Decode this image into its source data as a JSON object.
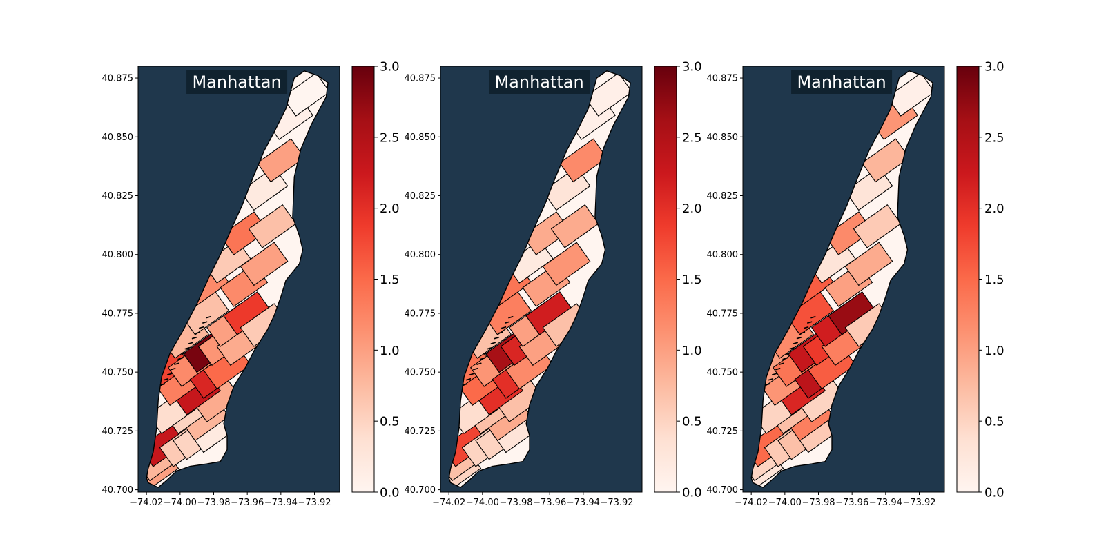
{
  "figure": {
    "background": "#ffffff"
  },
  "chart_data": [
    {
      "type": "choropleth",
      "title": "Manhattan",
      "background_color": "#1f374c",
      "title_box_color": "#0e1e2a",
      "xlim": [
        -74.025,
        -73.905
      ],
      "ylim": [
        40.699,
        40.88
      ],
      "x_ticks": [
        -74.02,
        -74.0,
        -73.98,
        -73.96,
        -73.94,
        -73.92
      ],
      "x_tick_labels": [
        "−74.02",
        "−74.00",
        "−73.98",
        "−73.96",
        "−73.94",
        "−73.92"
      ],
      "y_ticks": [
        40.7,
        40.725,
        40.75,
        40.775,
        40.8,
        40.825,
        40.85,
        40.875
      ],
      "y_tick_labels": [
        "40.700",
        "40.725",
        "40.750",
        "40.775",
        "40.800",
        "40.825",
        "40.850",
        "40.875"
      ],
      "colorbar": {
        "colormap": "Reds",
        "range": [
          0.0,
          3.0
        ],
        "ticks": [
          "0.0",
          "0.5",
          "1.0",
          "1.5",
          "2.0",
          "2.5",
          "3.0"
        ]
      },
      "zones": [
        {
          "lon": -74.015,
          "lat": 40.708,
          "value": 1.0
        },
        {
          "lon": -74.012,
          "lat": 40.713,
          "value": 0.8
        },
        {
          "lon": -74.01,
          "lat": 40.719,
          "value": 2.3
        },
        {
          "lon": -73.998,
          "lat": 40.719,
          "value": 0.6
        },
        {
          "lon": -73.99,
          "lat": 40.722,
          "value": 0.5
        },
        {
          "lon": -73.98,
          "lat": 40.725,
          "value": 0.2
        },
        {
          "lon": -73.985,
          "lat": 40.73,
          "value": 0.8
        },
        {
          "lon": -73.995,
          "lat": 40.733,
          "value": 0.5
        },
        {
          "lon": -74.005,
          "lat": 40.733,
          "value": 0.4
        },
        {
          "lon": -73.978,
          "lat": 40.738,
          "value": 0.9
        },
        {
          "lon": -73.99,
          "lat": 40.741,
          "value": 2.3
        },
        {
          "lon": -74.0,
          "lat": 40.745,
          "value": 1.3
        },
        {
          "lon": -74.008,
          "lat": 40.752,
          "value": 1.8
        },
        {
          "lon": -73.993,
          "lat": 40.753,
          "value": 1.2
        },
        {
          "lon": -73.98,
          "lat": 40.748,
          "value": 2.1
        },
        {
          "lon": -73.972,
          "lat": 40.752,
          "value": 1.5
        },
        {
          "lon": -73.984,
          "lat": 40.759,
          "value": 2.9
        },
        {
          "lon": -73.975,
          "lat": 40.762,
          "value": 1.1
        },
        {
          "lon": -73.964,
          "lat": 40.762,
          "value": 0.9
        },
        {
          "lon": -73.997,
          "lat": 40.765,
          "value": 0.8
        },
        {
          "lon": -73.985,
          "lat": 40.775,
          "value": 0.7
        },
        {
          "lon": -73.97,
          "lat": 40.77,
          "value": 1.0
        },
        {
          "lon": -73.96,
          "lat": 40.775,
          "value": 1.9
        },
        {
          "lon": -73.95,
          "lat": 40.77,
          "value": 0.6
        },
        {
          "lon": -73.985,
          "lat": 40.787,
          "value": 1.2
        },
        {
          "lon": -73.962,
          "lat": 40.787,
          "value": 1.2
        },
        {
          "lon": -73.972,
          "lat": 40.797,
          "value": 0.6
        },
        {
          "lon": -73.95,
          "lat": 40.796,
          "value": 1.0
        },
        {
          "lon": -73.962,
          "lat": 40.809,
          "value": 1.4
        },
        {
          "lon": -73.945,
          "lat": 40.812,
          "value": 0.7
        },
        {
          "lon": -73.95,
          "lat": 40.828,
          "value": 0.2
        },
        {
          "lon": -73.94,
          "lat": 40.84,
          "value": 1.0
        },
        {
          "lon": -73.935,
          "lat": 40.858,
          "value": 0.1
        },
        {
          "lon": -73.925,
          "lat": 40.868,
          "value": 0.0
        }
      ]
    },
    {
      "type": "choropleth",
      "title": "Manhattan",
      "background_color": "#1f374c",
      "title_box_color": "#0e1e2a",
      "xlim": [
        -74.025,
        -73.905
      ],
      "ylim": [
        40.699,
        40.88
      ],
      "x_ticks": [
        -74.02,
        -74.0,
        -73.98,
        -73.96,
        -73.94,
        -73.92
      ],
      "x_tick_labels": [
        "−74.02",
        "−74.00",
        "−73.98",
        "−73.96",
        "−73.94",
        "−73.92"
      ],
      "y_ticks": [
        40.7,
        40.725,
        40.75,
        40.775,
        40.8,
        40.825,
        40.85,
        40.875
      ],
      "y_tick_labels": [
        "40.700",
        "40.725",
        "40.750",
        "40.775",
        "40.800",
        "40.825",
        "40.850",
        "40.875"
      ],
      "colorbar": {
        "colormap": "Reds",
        "range": [
          0.0,
          3.0
        ],
        "ticks": [
          "0.0",
          "0.5",
          "1.0",
          "1.5",
          "2.0",
          "2.5",
          "3.0"
        ]
      },
      "zones": [
        {
          "lon": -74.015,
          "lat": 40.708,
          "value": 0.5
        },
        {
          "lon": -74.012,
          "lat": 40.713,
          "value": 0.7
        },
        {
          "lon": -74.01,
          "lat": 40.719,
          "value": 1.8
        },
        {
          "lon": -73.998,
          "lat": 40.719,
          "value": 0.5
        },
        {
          "lon": -73.99,
          "lat": 40.722,
          "value": 0.5
        },
        {
          "lon": -73.98,
          "lat": 40.725,
          "value": 0.3
        },
        {
          "lon": -73.985,
          "lat": 40.73,
          "value": 0.9
        },
        {
          "lon": -73.995,
          "lat": 40.733,
          "value": 0.7
        },
        {
          "lon": -74.005,
          "lat": 40.733,
          "value": 0.4
        },
        {
          "lon": -73.978,
          "lat": 40.738,
          "value": 0.7
        },
        {
          "lon": -73.99,
          "lat": 40.741,
          "value": 2.0
        },
        {
          "lon": -74.0,
          "lat": 40.745,
          "value": 1.5
        },
        {
          "lon": -74.008,
          "lat": 40.752,
          "value": 1.4
        },
        {
          "lon": -73.993,
          "lat": 40.753,
          "value": 1.1
        },
        {
          "lon": -73.98,
          "lat": 40.748,
          "value": 2.0
        },
        {
          "lon": -73.972,
          "lat": 40.752,
          "value": 1.2
        },
        {
          "lon": -73.984,
          "lat": 40.759,
          "value": 2.6
        },
        {
          "lon": -73.975,
          "lat": 40.762,
          "value": 2.1
        },
        {
          "lon": -73.964,
          "lat": 40.762,
          "value": 1.0
        },
        {
          "lon": -73.997,
          "lat": 40.765,
          "value": 0.7
        },
        {
          "lon": -73.985,
          "lat": 40.775,
          "value": 1.3
        },
        {
          "lon": -73.97,
          "lat": 40.77,
          "value": 1.0
        },
        {
          "lon": -73.96,
          "lat": 40.775,
          "value": 2.2
        },
        {
          "lon": -73.95,
          "lat": 40.77,
          "value": 0.7
        },
        {
          "lon": -73.985,
          "lat": 40.787,
          "value": 1.4
        },
        {
          "lon": -73.962,
          "lat": 40.787,
          "value": 1.0
        },
        {
          "lon": -73.972,
          "lat": 40.797,
          "value": 0.2
        },
        {
          "lon": -73.95,
          "lat": 40.796,
          "value": 1.1
        },
        {
          "lon": -73.962,
          "lat": 40.809,
          "value": 0.9
        },
        {
          "lon": -73.945,
          "lat": 40.812,
          "value": 0.9
        },
        {
          "lon": -73.95,
          "lat": 40.828,
          "value": 0.3
        },
        {
          "lon": -73.94,
          "lat": 40.84,
          "value": 1.2
        },
        {
          "lon": -73.935,
          "lat": 40.858,
          "value": 0.1
        },
        {
          "lon": -73.925,
          "lat": 40.868,
          "value": 0.1
        }
      ]
    },
    {
      "type": "choropleth",
      "title": "Manhattan",
      "background_color": "#1f374c",
      "title_box_color": "#0e1e2a",
      "xlim": [
        -74.025,
        -73.905
      ],
      "ylim": [
        40.699,
        40.88
      ],
      "x_ticks": [
        -74.02,
        -74.0,
        -73.98,
        -73.96,
        -73.94,
        -73.92
      ],
      "x_tick_labels": [
        "−74.02",
        "−74.00",
        "−73.98",
        "−73.96",
        "−73.94",
        "−73.92"
      ],
      "y_ticks": [
        40.7,
        40.725,
        40.75,
        40.775,
        40.8,
        40.825,
        40.85,
        40.875
      ],
      "y_tick_labels": [
        "40.700",
        "40.725",
        "40.750",
        "40.775",
        "40.800",
        "40.825",
        "40.850",
        "40.875"
      ],
      "colorbar": {
        "colormap": "Reds",
        "range": [
          0.0,
          3.0
        ],
        "ticks": [
          "0.0",
          "0.5",
          "1.0",
          "1.5",
          "2.0",
          "2.5",
          "3.0"
        ]
      },
      "zones": [
        {
          "lon": -74.015,
          "lat": 40.708,
          "value": 0.3
        },
        {
          "lon": -74.012,
          "lat": 40.713,
          "value": 0.5
        },
        {
          "lon": -74.01,
          "lat": 40.719,
          "value": 1.5
        },
        {
          "lon": -73.998,
          "lat": 40.719,
          "value": 0.6
        },
        {
          "lon": -73.99,
          "lat": 40.722,
          "value": 0.7
        },
        {
          "lon": -73.98,
          "lat": 40.725,
          "value": 0.6
        },
        {
          "lon": -73.985,
          "lat": 40.73,
          "value": 1.3
        },
        {
          "lon": -73.995,
          "lat": 40.733,
          "value": 0.7
        },
        {
          "lon": -74.005,
          "lat": 40.733,
          "value": 0.5
        },
        {
          "lon": -73.978,
          "lat": 40.738,
          "value": 0.5
        },
        {
          "lon": -73.99,
          "lat": 40.741,
          "value": 2.1
        },
        {
          "lon": -74.0,
          "lat": 40.745,
          "value": 1.1
        },
        {
          "lon": -74.008,
          "lat": 40.752,
          "value": 1.0
        },
        {
          "lon": -73.993,
          "lat": 40.753,
          "value": 1.4
        },
        {
          "lon": -73.98,
          "lat": 40.748,
          "value": 2.4
        },
        {
          "lon": -73.972,
          "lat": 40.752,
          "value": 1.6
        },
        {
          "lon": -73.984,
          "lat": 40.759,
          "value": 2.3
        },
        {
          "lon": -73.975,
          "lat": 40.762,
          "value": 1.9
        },
        {
          "lon": -73.964,
          "lat": 40.762,
          "value": 1.3
        },
        {
          "lon": -73.997,
          "lat": 40.765,
          "value": 1.2
        },
        {
          "lon": -73.985,
          "lat": 40.775,
          "value": 1.7
        },
        {
          "lon": -73.97,
          "lat": 40.77,
          "value": 2.2
        },
        {
          "lon": -73.96,
          "lat": 40.775,
          "value": 2.7
        },
        {
          "lon": -73.95,
          "lat": 40.77,
          "value": 0.6
        },
        {
          "lon": -73.985,
          "lat": 40.787,
          "value": 1.6
        },
        {
          "lon": -73.962,
          "lat": 40.787,
          "value": 1.0
        },
        {
          "lon": -73.972,
          "lat": 40.797,
          "value": 0.3
        },
        {
          "lon": -73.95,
          "lat": 40.796,
          "value": 0.9
        },
        {
          "lon": -73.962,
          "lat": 40.809,
          "value": 1.2
        },
        {
          "lon": -73.945,
          "lat": 40.812,
          "value": 0.6
        },
        {
          "lon": -73.95,
          "lat": 40.828,
          "value": 0.3
        },
        {
          "lon": -73.94,
          "lat": 40.84,
          "value": 0.8
        },
        {
          "lon": -73.935,
          "lat": 40.858,
          "value": 1.1
        },
        {
          "lon": -73.925,
          "lat": 40.868,
          "value": 0.1
        }
      ]
    }
  ]
}
